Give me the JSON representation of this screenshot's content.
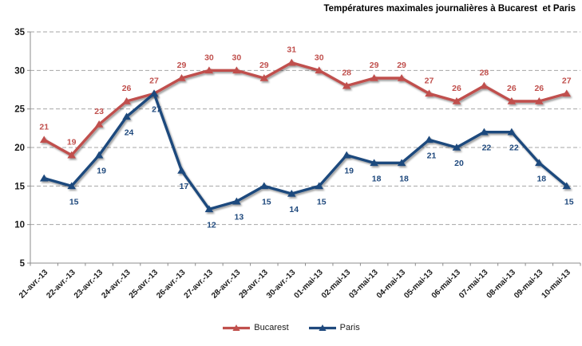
{
  "chart_data": {
    "type": "line",
    "title": "Températures maximales journalières à Bucarest  et Paris",
    "categories": [
      "21-avr.-13",
      "22-avr.-13",
      "23-avr.-13",
      "24-avr.-13",
      "25-avr.-13",
      "26-avr.-13",
      "27-avr.-13",
      "28-avr.-13",
      "29-avr.-13",
      "30-avr.-13",
      "01-mai-13",
      "02-mai-13",
      "03-mai-13",
      "04-mai-13",
      "05-mai-13",
      "06-mai-13",
      "07-mai-13",
      "08-mai-13",
      "09-mai-13",
      "10-mai-13"
    ],
    "ylim": [
      5,
      35
    ],
    "yticks": [
      35,
      30,
      25,
      20,
      15,
      10,
      5
    ],
    "grid": {
      "horizontal": true,
      "style": "dashed",
      "color": "#A6A6A6"
    },
    "axis_color": "#8C8C8C",
    "tick_label_color": "#1a1a1a",
    "legend_position": "bottom",
    "series": [
      {
        "name": "Bucarest",
        "color": "#C0504D",
        "marker": "triangle",
        "label_position": "above",
        "values": [
          21,
          19,
          23,
          26,
          27,
          29,
          30,
          30,
          29,
          31,
          30,
          28,
          29,
          29,
          27,
          26,
          28,
          26,
          26,
          27
        ],
        "labels": [
          "21",
          "19",
          "23",
          "26",
          "27",
          "29",
          "30",
          "30",
          "29",
          "31",
          "30",
          "28",
          "29",
          "29",
          "27",
          "26",
          "28",
          "26",
          "26",
          "27"
        ]
      },
      {
        "name": "Paris",
        "color": "#1F497D",
        "marker": "triangle",
        "label_position": "below",
        "values": [
          16,
          15,
          19,
          24,
          27,
          17,
          12,
          13,
          15,
          14,
          15,
          19,
          18,
          18,
          21,
          20,
          22,
          22,
          18,
          15
        ],
        "labels": [
          "",
          "15",
          "19",
          "24",
          "27",
          "17",
          "12",
          "13",
          "15",
          "14",
          "15",
          "19",
          "18",
          "18",
          "21",
          "20",
          "22",
          "22",
          "18",
          "15"
        ]
      }
    ]
  }
}
